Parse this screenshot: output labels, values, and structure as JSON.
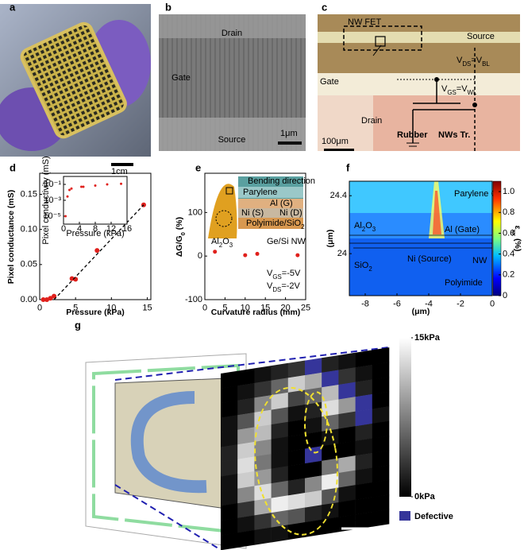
{
  "panel_labels": [
    "a",
    "b",
    "c",
    "d",
    "e",
    "f",
    "g"
  ],
  "panel_a": {
    "scale_bar": "1cm"
  },
  "panel_b": {
    "labels": [
      "Drain",
      "Gate",
      "Source"
    ],
    "scale_bar": "1μm"
  },
  "panel_c": {
    "nw_fet": "NW FET",
    "source": "Source",
    "vds": [
      "V",
      "DS",
      "=V",
      "BL"
    ],
    "gate": "Gate",
    "vgs": [
      "V",
      "GS",
      "=V",
      "WL"
    ],
    "nws": "NWs Tr.",
    "drain": "Drain",
    "rubber": "Rubber",
    "scale_bar": "100μm"
  },
  "chart_data": [
    {
      "type": "scatter",
      "x_label": "Pressure (kPa)",
      "y_label": "Pixel conductance (mS)",
      "xlim": [
        0,
        15.5
      ],
      "ylim": [
        0,
        0.18
      ],
      "xticks": [
        0,
        5,
        10,
        15
      ],
      "yticks": [
        {
          "value": 0,
          "label": "0.00"
        },
        {
          "value": 0.05,
          "label": "0.05"
        },
        {
          "value": 0.1,
          "label": "0.10"
        },
        {
          "value": 0.15,
          "label": "0.15"
        }
      ],
      "x": [
        0.5,
        1,
        1.5,
        2,
        4.5,
        5,
        8,
        11,
        14.5
      ],
      "values": [
        0,
        0,
        0.002,
        0.005,
        0.03,
        0.029,
        0.07,
        0.115,
        0.135
      ],
      "color": "#e0201c",
      "fit_line": {
        "x": [
          2,
          14.5
        ],
        "values": [
          0,
          0.135
        ],
        "color": "#000000"
      }
    },
    {
      "type": "scatter",
      "x_label": "Pressure (kPa)",
      "y_label": "Pixel conductivity (mS)",
      "log_y": true,
      "xlim": [
        0,
        16
      ],
      "ylim": [
        1e-06,
        1
      ],
      "xticks": [
        0,
        4,
        8,
        12,
        16
      ],
      "yticks": [
        {
          "value": 0.1,
          "label": "10⁻¹"
        },
        {
          "value": 0.001,
          "label": "10⁻³"
        },
        {
          "value": 1e-05,
          "label": "10⁻⁵"
        }
      ],
      "x": [
        0.5,
        1,
        1.5,
        2,
        4.5,
        5,
        8,
        11,
        14.5
      ],
      "values": [
        1e-05,
        0.003,
        0.02,
        0.03,
        0.05,
        0.05,
        0.07,
        0.1,
        0.12
      ],
      "color": "#e0201c"
    },
    {
      "type": "scatter",
      "x_label": "Curvature radius (mm)",
      "y_label": [
        "ΔG/G",
        "0",
        " (%)"
      ],
      "xlim": [
        0,
        25
      ],
      "ylim": [
        -100,
        190
      ],
      "xticks": [
        0,
        5,
        10,
        15,
        20,
        25
      ],
      "yticks": [
        -100,
        0,
        100
      ],
      "x": [
        2.5,
        10,
        13,
        23
      ],
      "values": [
        10,
        2,
        5,
        2
      ],
      "color": "#e0201c",
      "annotations": {
        "vgs": [
          "V",
          "GS",
          "=-5V"
        ],
        "vds": [
          "V",
          "DS",
          "=-2V"
        ]
      },
      "inset_labels": {
        "bending": "Bending direction",
        "parylene": "Parylene",
        "al": "Al (G)",
        "ni_s": "Ni (S)",
        "ni_d": "Ni (D)",
        "polyimide": [
          "Polyimide/SiO",
          "2"
        ],
        "al2o3": [
          "Al",
          "2",
          "O",
          "3"
        ],
        "nw": "Ge/Si NW"
      }
    },
    {
      "type": "colormap",
      "x_label": "(μm)",
      "y_label": "(μm)",
      "xlim": [
        -9,
        0
      ],
      "ylim": [
        23.71,
        24.5
      ],
      "xticks": [
        -8,
        -6,
        -4,
        -2,
        0
      ],
      "yticks": [
        24,
        24.4
      ],
      "clim": [
        0,
        1.1
      ],
      "cticks": [
        0,
        0.2,
        0.4,
        0.6,
        0.8,
        {
          "value": 1,
          "label": "1.0"
        }
      ],
      "colorbar_label": [
        "ε",
        "xx",
        " (%)"
      ],
      "labels": {
        "parylene": "Parylene C",
        "al2o3": [
          "Al",
          "2",
          "O",
          "3"
        ],
        "al_gate": "Al (Gate)",
        "sio2": [
          "SiO",
          "2"
        ],
        "ni_source": "Ni (Source)",
        "nw": "NW",
        "polyimide": "Polyimide"
      }
    },
    {
      "type": "heatmap",
      "clim": [
        0,
        15
      ],
      "cticks": [
        {
          "value": 15,
          "label": "15kPa"
        },
        {
          "value": 0,
          "label": "0kPa"
        }
      ],
      "legend": {
        "name": "Defective",
        "color": "#35359a"
      },
      "scale_bar": "1cm",
      "values": [
        [
          0,
          0,
          1,
          2,
          3,
          null,
          2,
          1,
          0,
          0
        ],
        [
          0,
          1,
          3,
          6,
          12,
          10,
          null,
          3,
          1,
          0
        ],
        [
          0,
          2,
          8,
          12,
          4,
          6,
          11,
          null,
          2,
          0
        ],
        [
          1,
          5,
          12,
          5,
          1,
          2,
          13,
          9,
          null,
          0
        ],
        [
          1,
          9,
          11,
          2,
          0,
          1,
          6,
          3,
          null,
          1
        ],
        [
          2,
          12,
          8,
          1,
          0,
          0,
          1,
          0,
          2,
          0
        ],
        [
          2,
          13,
          7,
          1,
          0,
          null,
          0,
          0,
          1,
          0
        ],
        [
          1,
          12,
          9,
          2,
          0,
          0,
          7,
          10,
          2,
          0
        ],
        [
          1,
          8,
          13,
          6,
          2,
          8,
          14,
          6,
          1,
          0
        ],
        [
          0,
          3,
          10,
          14,
          13,
          12,
          5,
          1,
          0,
          0
        ],
        [
          0,
          1,
          3,
          6,
          5,
          2,
          1,
          0,
          0,
          0
        ],
        [
          0,
          0,
          1,
          1,
          0,
          0,
          0,
          0,
          0,
          0
        ]
      ]
    }
  ]
}
